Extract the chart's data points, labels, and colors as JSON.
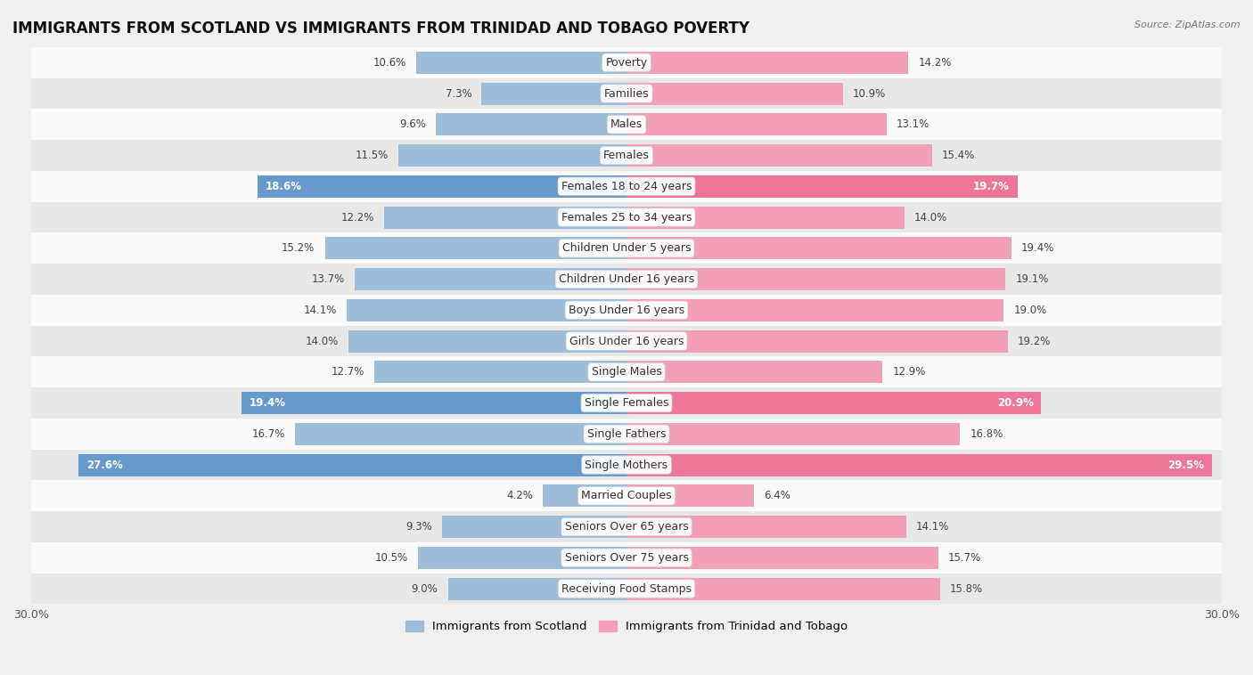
{
  "title": "IMMIGRANTS FROM SCOTLAND VS IMMIGRANTS FROM TRINIDAD AND TOBAGO POVERTY",
  "source": "Source: ZipAtlas.com",
  "categories": [
    "Poverty",
    "Families",
    "Males",
    "Females",
    "Females 18 to 24 years",
    "Females 25 to 34 years",
    "Children Under 5 years",
    "Children Under 16 years",
    "Boys Under 16 years",
    "Girls Under 16 years",
    "Single Males",
    "Single Females",
    "Single Fathers",
    "Single Mothers",
    "Married Couples",
    "Seniors Over 65 years",
    "Seniors Over 75 years",
    "Receiving Food Stamps"
  ],
  "scotland_values": [
    10.6,
    7.3,
    9.6,
    11.5,
    18.6,
    12.2,
    15.2,
    13.7,
    14.1,
    14.0,
    12.7,
    19.4,
    16.7,
    27.6,
    4.2,
    9.3,
    10.5,
    9.0
  ],
  "trinidad_values": [
    14.2,
    10.9,
    13.1,
    15.4,
    19.7,
    14.0,
    19.4,
    19.1,
    19.0,
    19.2,
    12.9,
    20.9,
    16.8,
    29.5,
    6.4,
    14.1,
    15.7,
    15.8
  ],
  "scotland_color": "#9dbdd8",
  "trinidad_color": "#f2a0b8",
  "scotland_highlight_color": "#6699cc",
  "trinidad_highlight_color": "#ee7799",
  "highlight_rows": [
    4,
    11,
    13
  ],
  "background_color": "#f0f0f0",
  "row_bg_light": "#fafafa",
  "row_bg_dark": "#e8e8e8",
  "xlim": 30.0,
  "legend_scotland": "Immigrants from Scotland",
  "legend_trinidad": "Immigrants from Trinidad and Tobago",
  "title_fontsize": 12,
  "label_fontsize": 9,
  "value_fontsize": 8.5,
  "bar_height": 0.72
}
